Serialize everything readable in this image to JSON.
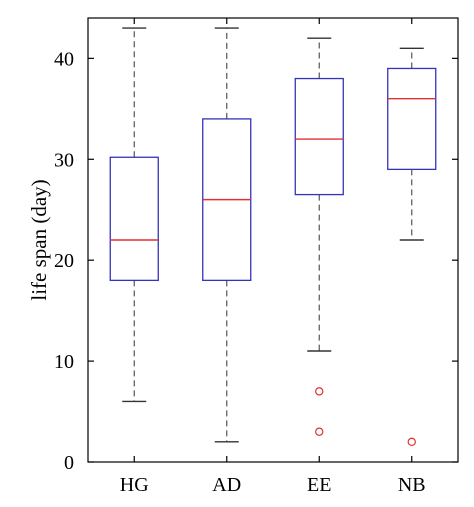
{
  "chart_data": {
    "type": "box",
    "title": "",
    "xlabel": "",
    "ylabel": "life span (day)",
    "ylim": [
      0,
      44
    ],
    "yticks": [
      0,
      10,
      20,
      30,
      40
    ],
    "categories": [
      "HG",
      "AD",
      "EE",
      "NB"
    ],
    "boxes": [
      {
        "label": "HG",
        "whisker_low": 6,
        "q1": 18,
        "median": 22,
        "q3": 30.2,
        "whisker_high": 43,
        "outliers": []
      },
      {
        "label": "AD",
        "whisker_low": 2,
        "q1": 18,
        "median": 26,
        "q3": 34,
        "whisker_high": 43,
        "outliers": []
      },
      {
        "label": "EE",
        "whisker_low": 11,
        "q1": 26.5,
        "median": 32,
        "q3": 38,
        "whisker_high": 42,
        "outliers": [
          7,
          3
        ]
      },
      {
        "label": "NB",
        "whisker_low": 22,
        "q1": 29,
        "median": 36,
        "q3": 39,
        "whisker_high": 41,
        "outliers": [
          2
        ]
      }
    ],
    "grid": false,
    "colors": {
      "box": "#3333bb",
      "median": "#e03030",
      "whisker": "#555555",
      "outlier": "#e03030",
      "axis": "#000000"
    }
  }
}
